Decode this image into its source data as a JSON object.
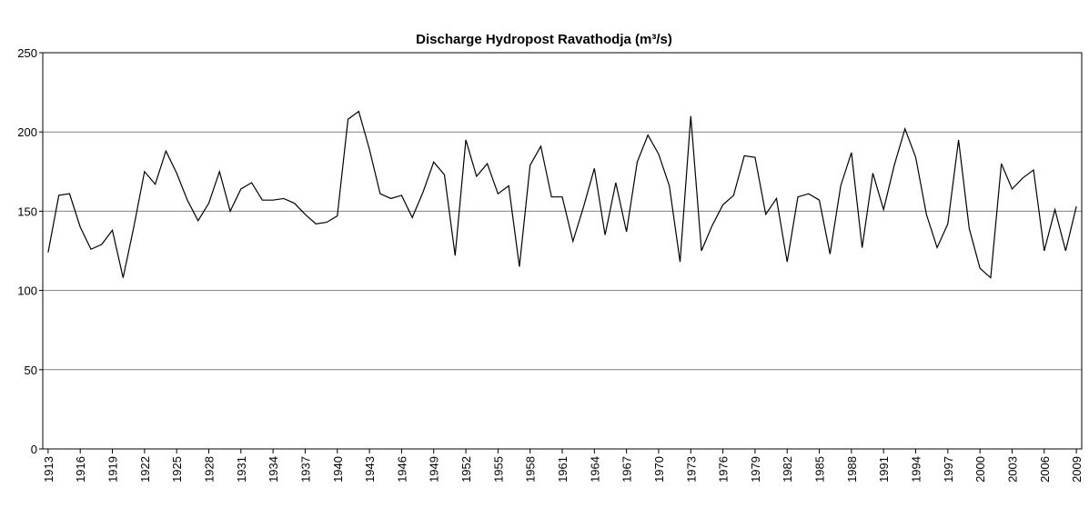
{
  "chart_data": {
    "type": "line",
    "title": "Discharge Hydropost Ravathodja (m³/s)",
    "x": [
      1913,
      1914,
      1915,
      1916,
      1917,
      1918,
      1919,
      1920,
      1921,
      1922,
      1923,
      1924,
      1925,
      1926,
      1927,
      1928,
      1929,
      1930,
      1931,
      1932,
      1933,
      1934,
      1935,
      1936,
      1937,
      1938,
      1939,
      1940,
      1941,
      1942,
      1943,
      1944,
      1945,
      1946,
      1947,
      1948,
      1949,
      1950,
      1951,
      1952,
      1953,
      1954,
      1955,
      1956,
      1957,
      1958,
      1959,
      1960,
      1961,
      1962,
      1963,
      1964,
      1965,
      1966,
      1967,
      1968,
      1969,
      1970,
      1971,
      1972,
      1973,
      1974,
      1975,
      1976,
      1977,
      1978,
      1979,
      1980,
      1981,
      1982,
      1983,
      1984,
      1985,
      1986,
      1987,
      1988,
      1989,
      1990,
      1991,
      1992,
      1993,
      1994,
      1995,
      1996,
      1997,
      1998,
      1999,
      2000,
      2001,
      2002,
      2003,
      2004,
      2005,
      2006,
      2007,
      2008,
      2009
    ],
    "series": [
      {
        "name": "Discharge",
        "color": "#000000",
        "values": [
          124,
          160,
          161,
          140,
          126,
          129,
          138,
          108,
          140,
          175,
          167,
          188,
          174,
          157,
          144,
          155,
          175,
          150,
          164,
          168,
          157,
          157,
          158,
          155,
          148,
          142,
          143,
          147,
          208,
          213,
          189,
          161,
          158,
          160,
          146,
          162,
          181,
          173,
          122,
          195,
          172,
          180,
          161,
          166,
          115,
          179,
          191,
          159,
          159,
          131,
          153,
          177,
          135,
          168,
          137,
          181,
          198,
          186,
          166,
          118,
          210,
          125,
          141,
          154,
          160,
          185,
          184,
          148,
          158,
          118,
          159,
          161,
          157,
          123,
          166,
          187,
          127,
          174,
          151,
          179,
          202,
          184,
          148,
          127,
          142,
          195,
          139,
          114,
          108,
          180,
          164,
          171,
          176,
          125,
          151,
          125,
          153
        ]
      }
    ],
    "xlim": [
      1912.5,
      2009.5
    ],
    "xticks": [
      1913,
      1916,
      1919,
      1922,
      1925,
      1928,
      1931,
      1934,
      1937,
      1940,
      1943,
      1946,
      1949,
      1952,
      1955,
      1958,
      1961,
      1964,
      1967,
      1970,
      1973,
      1976,
      1979,
      1982,
      1985,
      1988,
      1991,
      1994,
      1997,
      2000,
      2003,
      2006,
      2009
    ],
    "ylim": [
      0,
      250
    ],
    "yticks": [
      0,
      50,
      100,
      150,
      200,
      250
    ],
    "grid": true
  }
}
